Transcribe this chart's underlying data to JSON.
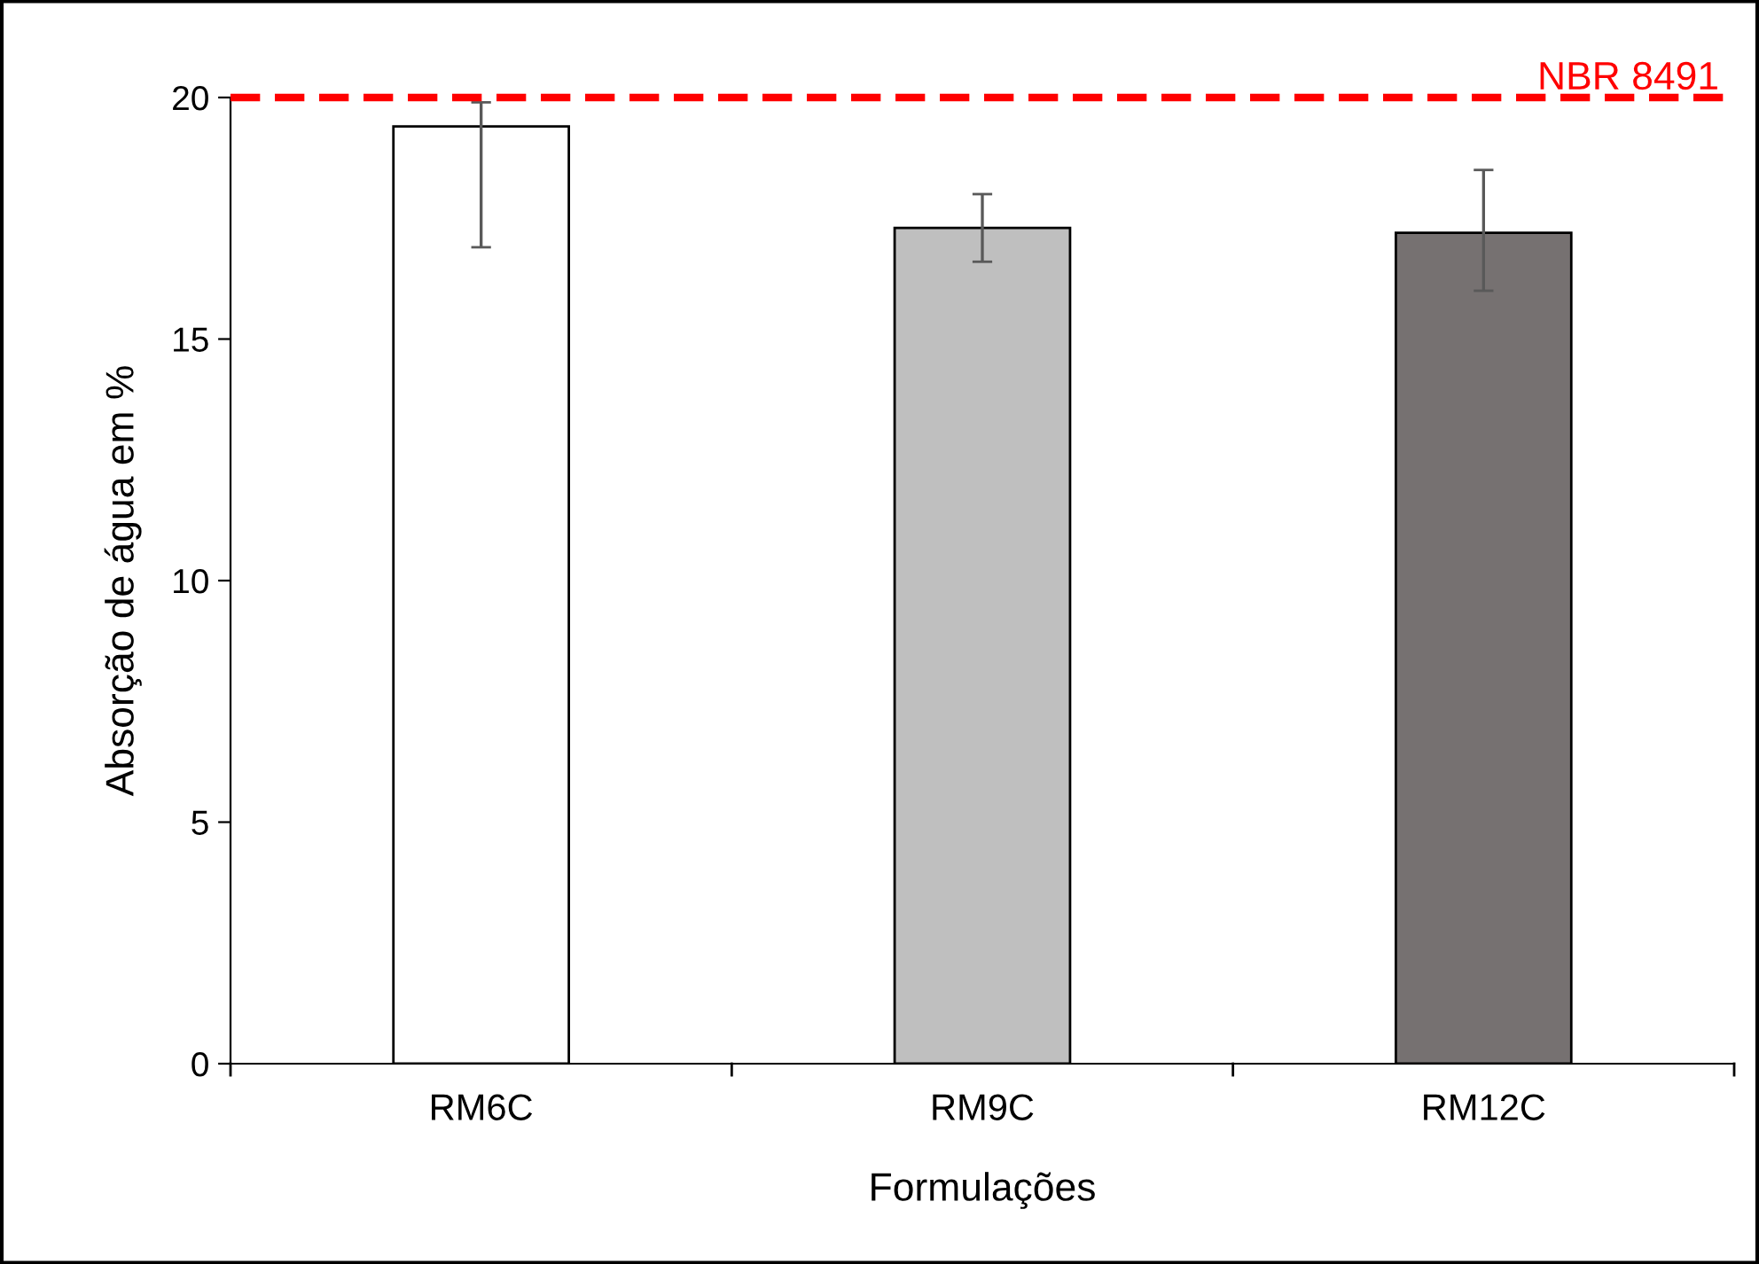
{
  "chart_data": {
    "type": "bar",
    "xlabel": "Formulações",
    "ylabel": "Absorção de água em %",
    "categories": [
      "RM6C",
      "RM9C",
      "RM12C"
    ],
    "values": [
      19.4,
      17.3,
      17.2
    ],
    "colors": [
      "#ffffff",
      "#bfbfbf",
      "#767171"
    ],
    "errors": [
      [
        16.9,
        19.9
      ],
      [
        16.6,
        18.0
      ],
      [
        16.0,
        18.5
      ]
    ],
    "ylim": [
      0,
      20
    ],
    "yticks": [
      0,
      5,
      10,
      15,
      20
    ],
    "grid": false,
    "ref_lines": [
      {
        "axis": "y",
        "value": 20,
        "label": "NBR 8491",
        "color": "#ff0000",
        "line_style": "dashed"
      }
    ]
  }
}
